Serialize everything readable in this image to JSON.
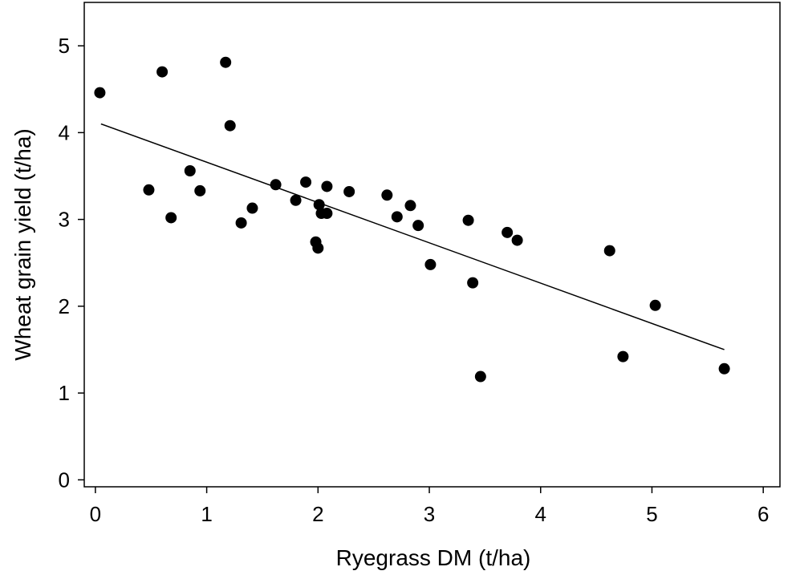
{
  "chart_data": {
    "type": "scatter",
    "xlabel": "Ryegrass DM (t/ha)",
    "ylabel": "Wheat grain yield (t/ha)",
    "xlim": [
      -0.1,
      6.15
    ],
    "ylim": [
      -0.08,
      5.5
    ],
    "x_ticks": [
      0,
      1,
      2,
      3,
      4,
      5,
      6
    ],
    "y_ticks": [
      0,
      1,
      2,
      3,
      4,
      5
    ],
    "grid": false,
    "point_color": "#000000",
    "series": [
      {
        "points": [
          {
            "x": 0.04,
            "y": 4.46
          },
          {
            "x": 0.48,
            "y": 3.34
          },
          {
            "x": 0.6,
            "y": 4.7
          },
          {
            "x": 0.68,
            "y": 3.02
          },
          {
            "x": 0.85,
            "y": 3.56
          },
          {
            "x": 0.94,
            "y": 3.33
          },
          {
            "x": 1.17,
            "y": 4.81
          },
          {
            "x": 1.21,
            "y": 4.08
          },
          {
            "x": 1.31,
            "y": 2.96
          },
          {
            "x": 1.41,
            "y": 3.13
          },
          {
            "x": 1.62,
            "y": 3.4
          },
          {
            "x": 1.8,
            "y": 3.22
          },
          {
            "x": 1.89,
            "y": 3.43
          },
          {
            "x": 1.98,
            "y": 2.74
          },
          {
            "x": 2.0,
            "y": 2.67
          },
          {
            "x": 2.01,
            "y": 3.17
          },
          {
            "x": 2.03,
            "y": 3.07
          },
          {
            "x": 2.08,
            "y": 3.07
          },
          {
            "x": 2.08,
            "y": 3.38
          },
          {
            "x": 2.28,
            "y": 3.32
          },
          {
            "x": 2.62,
            "y": 3.28
          },
          {
            "x": 2.71,
            "y": 3.03
          },
          {
            "x": 2.83,
            "y": 3.16
          },
          {
            "x": 2.9,
            "y": 2.93
          },
          {
            "x": 3.01,
            "y": 2.48
          },
          {
            "x": 3.35,
            "y": 2.99
          },
          {
            "x": 3.39,
            "y": 2.27
          },
          {
            "x": 3.46,
            "y": 1.19
          },
          {
            "x": 3.7,
            "y": 2.85
          },
          {
            "x": 3.79,
            "y": 2.76
          },
          {
            "x": 4.62,
            "y": 2.64
          },
          {
            "x": 4.74,
            "y": 1.42
          },
          {
            "x": 5.03,
            "y": 2.01
          },
          {
            "x": 5.65,
            "y": 1.28
          }
        ]
      }
    ],
    "trendline": {
      "x": [
        0.05,
        5.65
      ],
      "y": [
        4.1,
        1.5
      ]
    }
  }
}
